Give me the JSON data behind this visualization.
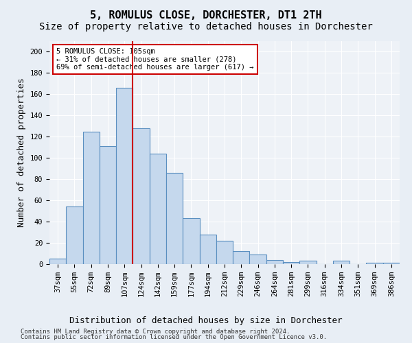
{
  "title": "5, ROMULUS CLOSE, DORCHESTER, DT1 2TH",
  "subtitle": "Size of property relative to detached houses in Dorchester",
  "xlabel": "Distribution of detached houses by size in Dorchester",
  "ylabel": "Number of detached properties",
  "categories": [
    "37sqm",
    "55sqm",
    "72sqm",
    "89sqm",
    "107sqm",
    "124sqm",
    "142sqm",
    "159sqm",
    "177sqm",
    "194sqm",
    "212sqm",
    "229sqm",
    "246sqm",
    "264sqm",
    "281sqm",
    "299sqm",
    "316sqm",
    "334sqm",
    "351sqm",
    "369sqm",
    "386sqm"
  ],
  "values": [
    5,
    54,
    125,
    111,
    166,
    128,
    104,
    86,
    43,
    28,
    22,
    12,
    9,
    4,
    2,
    3,
    0,
    3,
    0,
    1,
    1
  ],
  "bar_color": "#c5d8ed",
  "bar_edge_color": "#5a8fc0",
  "vline_x": 4.5,
  "vline_color": "#cc0000",
  "annotation_text": "5 ROMULUS CLOSE: 105sqm\n← 31% of detached houses are smaller (278)\n69% of semi-detached houses are larger (617) →",
  "annotation_box_color": "#ffffff",
  "annotation_box_edge_color": "#cc0000",
  "ylim": [
    0,
    210
  ],
  "yticks": [
    0,
    20,
    40,
    60,
    80,
    100,
    120,
    140,
    160,
    180,
    200
  ],
  "footer1": "Contains HM Land Registry data © Crown copyright and database right 2024.",
  "footer2": "Contains public sector information licensed under the Open Government Licence v3.0.",
  "bg_color": "#e8eef5",
  "plot_bg_color": "#eef2f7",
  "grid_color": "#ffffff",
  "title_fontsize": 11,
  "subtitle_fontsize": 10,
  "tick_fontsize": 7.5,
  "ylabel_fontsize": 9,
  "xlabel_fontsize": 9,
  "annotation_fontsize": 7.5,
  "footer_fontsize": 6.5
}
